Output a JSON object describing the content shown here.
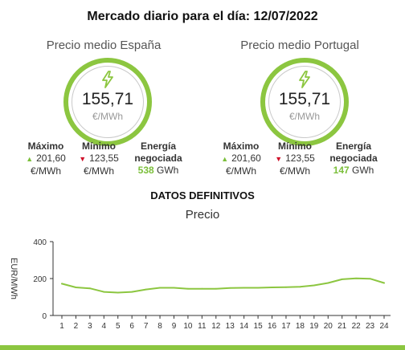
{
  "header": {
    "title": "Mercado diario para el día: 12/07/2022"
  },
  "regions": [
    {
      "title": "Precio medio España",
      "price": "155,71",
      "unit": "€/MWh",
      "max_label": "Máximo",
      "max_value": "201,60",
      "max_unit": "€/MWh",
      "min_label": "Mínimo",
      "min_value": "123,55",
      "min_unit": "€/MWh",
      "energy_label_1": "Energía",
      "energy_label_2": "negociada",
      "energy_value": "538",
      "energy_unit": "GWh"
    },
    {
      "title": "Precio medio Portugal",
      "price": "155,71",
      "unit": "€/MWh",
      "max_label": "Máximo",
      "max_value": "201,60",
      "max_unit": "€/MWh",
      "min_label": "Mínimo",
      "min_value": "123,55",
      "min_unit": "€/MWh",
      "energy_label_1": "Energía",
      "energy_label_2": "negociada",
      "energy_value": "147",
      "energy_unit": "GWh"
    }
  ],
  "section": {
    "title": "DATOS DEFINITIVOS"
  },
  "icons": {
    "price": "lightning-bolt-icon",
    "max": "triangle-up-icon",
    "min": "triangle-down-icon"
  },
  "colors": {
    "accent": "#8cc640",
    "up": "#7bbf3a",
    "down": "#d0102a"
  },
  "chart_data": {
    "type": "line",
    "title": "Precio",
    "ylabel": "EUR/MWh",
    "xlabel": "",
    "x": [
      1,
      2,
      3,
      4,
      5,
      6,
      7,
      8,
      9,
      10,
      11,
      12,
      13,
      14,
      15,
      16,
      17,
      18,
      19,
      20,
      21,
      22,
      23,
      24
    ],
    "series": [
      {
        "values": [
          172,
          152,
          147,
          128,
          124,
          128,
          141,
          150,
          150,
          145,
          145,
          145,
          149,
          150,
          150,
          152,
          153,
          155,
          163,
          176,
          196,
          201,
          199,
          176
        ]
      }
    ],
    "ylim": [
      0,
      400
    ],
    "yticks": [
      0,
      200,
      400
    ],
    "grid": false
  }
}
